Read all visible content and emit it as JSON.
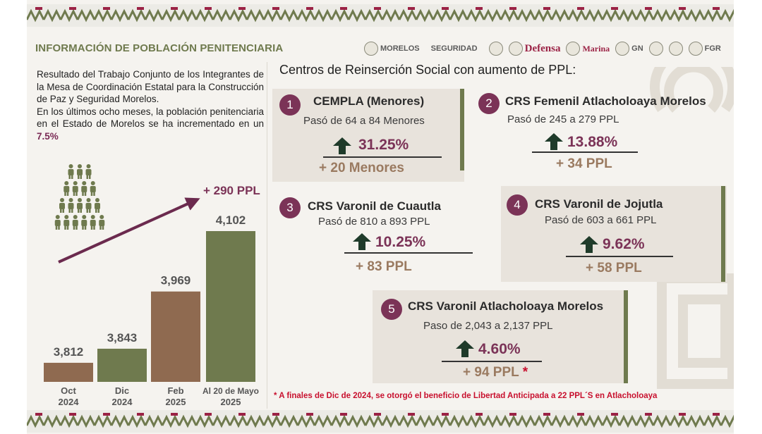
{
  "header": {
    "title": "INFORMACIÓN DE POBLACIÓN PENITENCIARIA"
  },
  "logos": [
    {
      "name": "morelos-logo",
      "label": "MORELOS"
    },
    {
      "name": "seguridad-logo",
      "label": "SEGURIDAD"
    },
    {
      "name": "defensa-logo",
      "label": "Defensa"
    },
    {
      "name": "marina-logo",
      "label": "Marina"
    },
    {
      "name": "gn-logo",
      "label": "GN"
    },
    {
      "name": "fgr-logo",
      "label": "FGR"
    }
  ],
  "intro": {
    "p1": "Resultado del Trabajo Conjunto de los Integrantes de la Mesa de Coordinación Estatal para la Construcción de Paz y Seguridad Morelos.",
    "p2": "En los últimos ocho meses, la población penitenciaria en el Estado de Morelos se ha incrementado en un",
    "p2_highlight": "7.5%"
  },
  "chart_data": {
    "type": "bar",
    "categories": [
      "Oct 2024",
      "Dic 2024",
      "Feb 2025",
      "Al 20 de Mayo 2025"
    ],
    "category_lines": [
      [
        "Oct",
        "2024"
      ],
      [
        "Dic",
        "2024"
      ],
      [
        "Feb",
        "2025"
      ],
      [
        "Al 20 de Mayo",
        "2025"
      ]
    ],
    "values": [
      3812,
      3843,
      3969,
      4102
    ],
    "value_labels": [
      "3,812",
      "3,843",
      "3,969",
      "4,102"
    ],
    "colors": [
      "#8f6a50",
      "#6f7a4e",
      "#8f6a50",
      "#6f7a4e"
    ],
    "annotation": "+ 290 PPL",
    "title": "",
    "xlabel": "",
    "ylabel": ""
  },
  "crs": {
    "heading": "Centros de Reinserción Social con aumento de PPL:",
    "cards": [
      {
        "num": "1",
        "title": "CEMPLA (Menores)",
        "sub": "Pasó de  64 a 84 Menores",
        "pct": "31.25%",
        "delta": "+ 20 Menores"
      },
      {
        "num": "2",
        "title": "CRS Femenil Atlacholoaya Morelos",
        "sub": "Pasó de 245 a 279  PPL",
        "pct": "13.88%",
        "delta": "+ 34 PPL"
      },
      {
        "num": "3",
        "title": "CRS Varonil de Cuautla",
        "sub": "Pasó de 810 a 893  PPL",
        "pct": "10.25%",
        "delta": "+ 83 PPL"
      },
      {
        "num": "4",
        "title": "CRS  Varonil de Jojutla",
        "sub": "Pasó de 603 a 661  PPL",
        "pct": "9.62%",
        "delta": "+ 58 PPL"
      },
      {
        "num": "5",
        "title": "CRS Varonil Atlacholoaya Morelos",
        "sub": "Paso de  2,043 a 2,137  PPL",
        "pct": "4.60%",
        "delta": "+ 94 PPL",
        "mark": "*"
      }
    ]
  },
  "footnote": "* A finales de Dic de 2024, se otorgó el beneficio de Libertad Anticipada a 22 PPL´S en Atlacholoaya",
  "colors": {
    "brown": "#8f6a50",
    "olive": "#6f7a4e",
    "wine": "#7b3357",
    "arrow": "#1f3b2a",
    "red": "#c8102e"
  }
}
